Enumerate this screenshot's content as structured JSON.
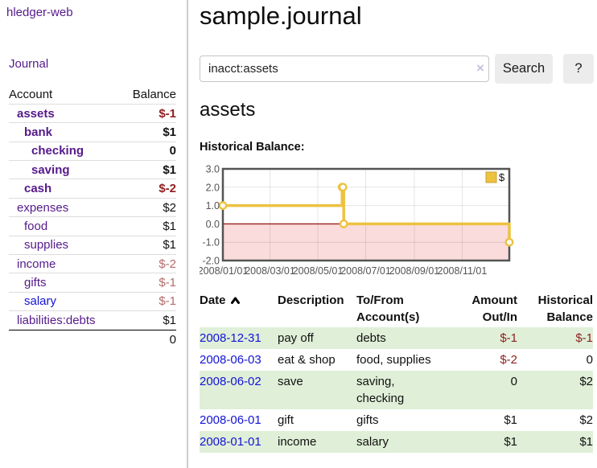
{
  "app": {
    "title": "hledger-web"
  },
  "sidebar": {
    "journal_link": "Journal",
    "accounts_table": {
      "account_header": "Account",
      "balance_header": "Balance",
      "rows": [
        {
          "name": "assets",
          "depth": 1,
          "balance": "$-1",
          "bold": true,
          "balance_class": "neg-strong",
          "link_class": "purple"
        },
        {
          "name": "bank",
          "depth": 2,
          "balance": "$1",
          "bold": true,
          "balance_class": "",
          "link_class": "purple"
        },
        {
          "name": "checking",
          "depth": 3,
          "balance": "0",
          "bold": true,
          "balance_class": "",
          "link_class": "purple"
        },
        {
          "name": "saving",
          "depth": 3,
          "balance": "$1",
          "bold": true,
          "balance_class": "",
          "link_class": "purple"
        },
        {
          "name": "cash",
          "depth": 2,
          "balance": "$-2",
          "bold": true,
          "balance_class": "neg-strong",
          "link_class": "purple"
        },
        {
          "name": "expenses",
          "depth": 1,
          "balance": "$2",
          "bold": false,
          "balance_class": "",
          "link_class": "purple"
        },
        {
          "name": "food",
          "depth": 2,
          "balance": "$1",
          "bold": false,
          "balance_class": "",
          "link_class": "purple"
        },
        {
          "name": "supplies",
          "depth": 2,
          "balance": "$1",
          "bold": false,
          "balance_class": "",
          "link_class": "purple"
        },
        {
          "name": "income",
          "depth": 1,
          "balance": "$-2",
          "bold": false,
          "balance_class": "neg-muted",
          "link_class": "purple"
        },
        {
          "name": "gifts",
          "depth": 2,
          "balance": "$-1",
          "bold": false,
          "balance_class": "neg-muted",
          "link_class": "purple"
        },
        {
          "name": "salary",
          "depth": 2,
          "balance": "$-1",
          "bold": false,
          "balance_class": "neg-muted",
          "link_class": "blue"
        },
        {
          "name": "liabilities:debts",
          "depth": 1,
          "balance": "$1",
          "bold": false,
          "balance_class": "",
          "link_class": "purple"
        }
      ],
      "total": "0"
    }
  },
  "main": {
    "title": "sample.journal",
    "search": {
      "value": "inacct:assets",
      "clear_icon": "×",
      "search_button": "Search",
      "help_button": "?"
    },
    "account_heading": "assets",
    "chart_heading": "Historical Balance:"
  },
  "chart_data": {
    "type": "line",
    "title": "Historical Balance",
    "step": true,
    "legend": [
      {
        "label": "$",
        "color": "#edc240"
      }
    ],
    "legend_position": "top-right",
    "grid": true,
    "xlim_days": [
      0,
      365
    ],
    "ylim": [
      -2,
      3
    ],
    "x_ticks": [
      {
        "label": "2008/01/01",
        "day": 0
      },
      {
        "label": "2008/03/01",
        "day": 60
      },
      {
        "label": "2008/05/01",
        "day": 121
      },
      {
        "label": "2008/07/01",
        "day": 182
      },
      {
        "label": "2008/09/01",
        "day": 244
      },
      {
        "label": "2008/11/01",
        "day": 305
      }
    ],
    "y_ticks": [
      {
        "label": "3.0",
        "value": 3
      },
      {
        "label": "2.0",
        "value": 2
      },
      {
        "label": "1.0",
        "value": 1
      },
      {
        "label": "0.0",
        "value": 0
      },
      {
        "label": "-1.0",
        "value": -1
      },
      {
        "label": "-2.0",
        "value": -2
      }
    ],
    "y_grid_values": [
      2,
      1,
      -1
    ],
    "series": [
      {
        "name": "$",
        "points": [
          {
            "date": "2008-01-01",
            "day": 0,
            "value": 1
          },
          {
            "date": "2008-06-01",
            "day": 152,
            "value": 2
          },
          {
            "date": "2008-06-02",
            "day": 153,
            "value": 2
          },
          {
            "date": "2008-06-03",
            "day": 154,
            "value": 0
          },
          {
            "date": "2008-12-31",
            "day": 365,
            "value": -1
          }
        ]
      }
    ],
    "colors": {
      "line": "#edc240",
      "marker_fill": "#ffffff",
      "negative_region_fill": "#fadcdc",
      "zero_line": "#9a1c1c",
      "plot_border": "#545454",
      "tick_label": "#545454"
    }
  },
  "register_table": {
    "headers": {
      "date": "Date",
      "sort_icon": "asc",
      "description": "Description",
      "accounts": [
        "To/From",
        "Account(s)"
      ],
      "amount": [
        "Amount",
        "Out/In"
      ],
      "balance": [
        "Historical",
        "Balance"
      ]
    },
    "rows": [
      {
        "date": "2008-12-31",
        "description": "pay off",
        "accounts": [
          "debts"
        ],
        "amount": "$-1",
        "balance": "$-1",
        "amount_class": "neg-strong",
        "balance_class": "neg-strong",
        "stripe": true
      },
      {
        "date": "2008-06-03",
        "description": "eat & shop",
        "accounts": [
          "food, supplies"
        ],
        "amount": "$-2",
        "balance": "0",
        "amount_class": "neg-strong",
        "balance_class": "",
        "stripe": false
      },
      {
        "date": "2008-06-02",
        "description": "save",
        "accounts": [
          "saving,",
          "checking"
        ],
        "amount": "0",
        "balance": "$2",
        "amount_class": "",
        "balance_class": "",
        "stripe": true
      },
      {
        "date": "2008-06-01",
        "description": "gift",
        "accounts": [
          "gifts"
        ],
        "amount": "$1",
        "balance": "$2",
        "amount_class": "",
        "balance_class": "",
        "stripe": false
      },
      {
        "date": "2008-01-01",
        "description": "income",
        "accounts": [
          "salary"
        ],
        "amount": "$1",
        "balance": "$1",
        "amount_class": "",
        "balance_class": "",
        "stripe": true
      }
    ]
  },
  "colors": {
    "link_purple": "#551a8b",
    "link_blue": "#1313d6",
    "negative_strong": "#8e1f1f",
    "negative_muted": "#b36b6b",
    "row_stripe_green": "#e0efd8",
    "chart_line_gold": "#edc240"
  }
}
